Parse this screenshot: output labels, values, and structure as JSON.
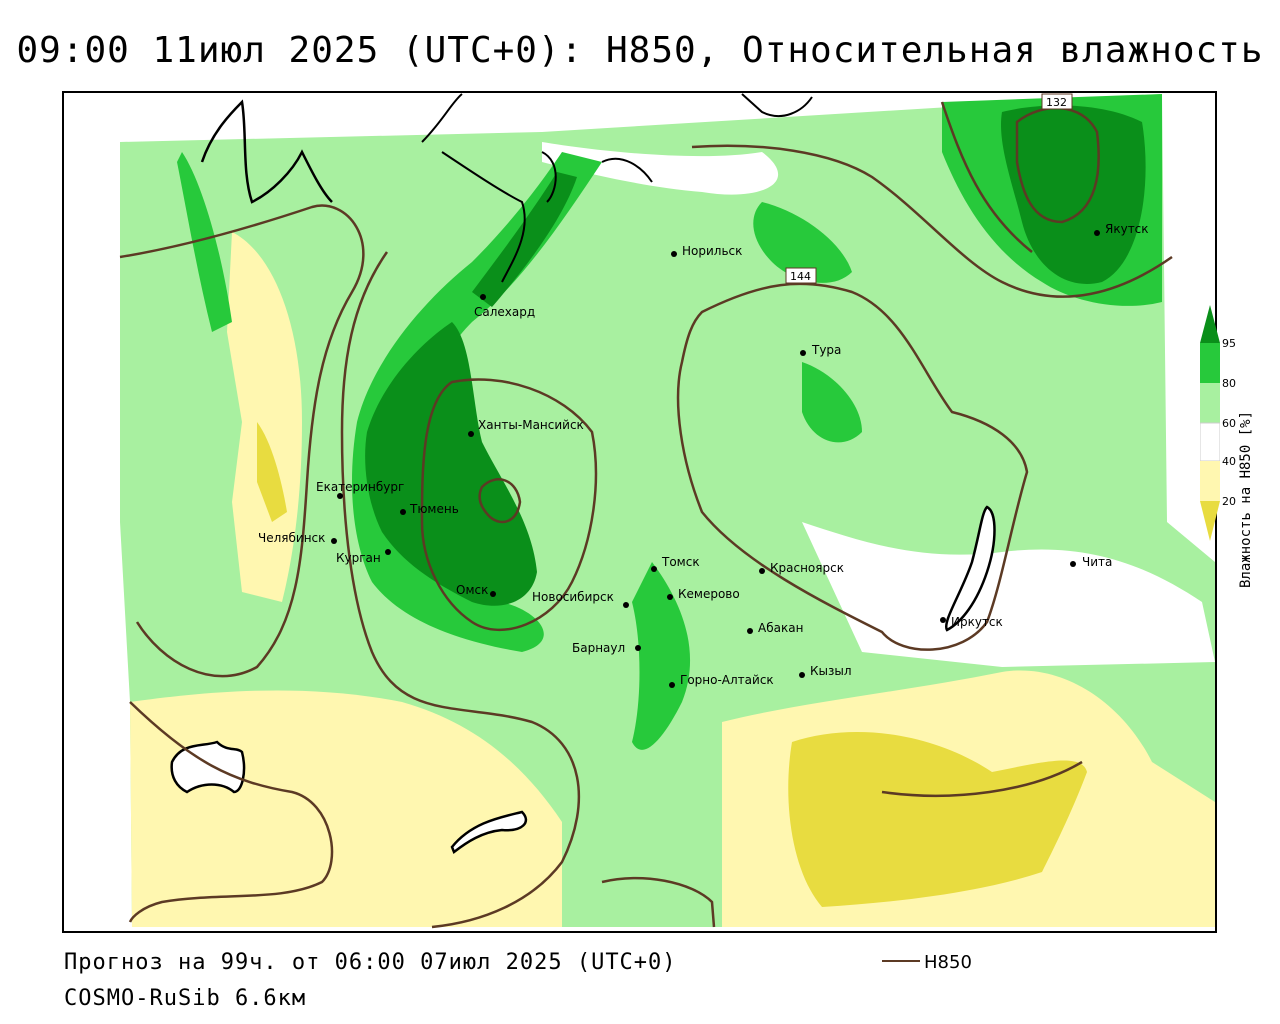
{
  "header": {
    "title": "09:00 11июл 2025 (UTC+0): H850, Относительная влажность"
  },
  "footer": {
    "forecast": "Прогноз на 99ч. от 06:00 07июл 2025 (UTC+0)",
    "model": "COSMO-RuSib 6.6км",
    "legend_label": "H850",
    "legend_color": "#5c3a24"
  },
  "colorbar": {
    "title": "Влажность на H850 [%]",
    "ticks": [
      "95",
      "80",
      "60",
      "40",
      "20"
    ],
    "colors": [
      "#0a8f1a",
      "#27c93b",
      "#a8f0a0",
      "#ffffff",
      "#fff7b0",
      "#e8dc40"
    ]
  },
  "contours": {
    "labels": [
      "132",
      "144"
    ],
    "color": "#5c3a24"
  },
  "cities": [
    {
      "name": "Салехард"
    },
    {
      "name": "Норильск"
    },
    {
      "name": "Якутск"
    },
    {
      "name": "Тура"
    },
    {
      "name": "Ханты-Мансийск"
    },
    {
      "name": "Екатеринбург"
    },
    {
      "name": "Тюмень"
    },
    {
      "name": "Челябинск"
    },
    {
      "name": "Курган"
    },
    {
      "name": "Омск"
    },
    {
      "name": "Новосибирск"
    },
    {
      "name": "Томск"
    },
    {
      "name": "Кемерово"
    },
    {
      "name": "Красноярск"
    },
    {
      "name": "Абакан"
    },
    {
      "name": "Барнаул"
    },
    {
      "name": "Горно-Алтайск"
    },
    {
      "name": "Кызыл"
    },
    {
      "name": "Иркутск"
    },
    {
      "name": "Чита"
    }
  ]
}
